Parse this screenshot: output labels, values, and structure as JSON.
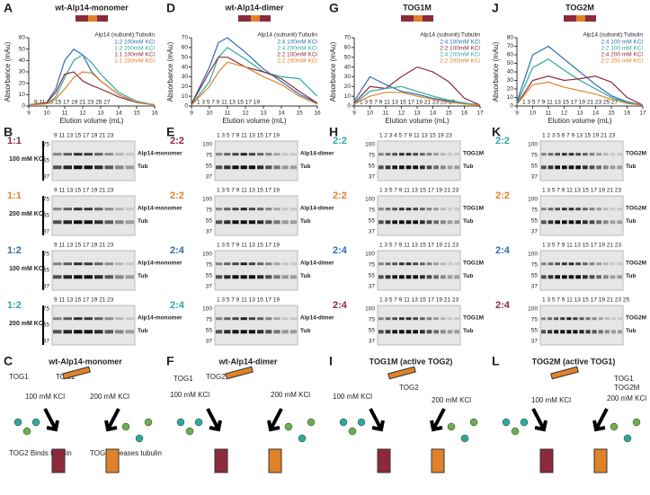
{
  "chart_data": [
    {
      "type": "line",
      "label": "A",
      "title": "wt-Alp14-monomer",
      "subtitle": "Alp14 (subunit):Tubulin",
      "x_label": "Elution volume (mL)",
      "y_label": "Absorbance (mAu)",
      "fractions": "9 11 13 15 17 19 21 23 25 27",
      "x": [
        9,
        10,
        10.5,
        11,
        11.5,
        12,
        12.5,
        13,
        14,
        15,
        16
      ],
      "series": [
        {
          "name": "1:2 100mM KCl",
          "color": "#2e6db4",
          "values": [
            1,
            3,
            15,
            40,
            50,
            45,
            30,
            22,
            10,
            3,
            1
          ]
        },
        {
          "name": "1:2 200mM KCl",
          "color": "#2fa8a0",
          "values": [
            1,
            2,
            8,
            25,
            40,
            45,
            38,
            28,
            12,
            4,
            1
          ]
        },
        {
          "name": "1:1 100mM KCl",
          "color": "#8c2a3c",
          "values": [
            1,
            3,
            12,
            28,
            30,
            22,
            18,
            15,
            8,
            3,
            1
          ]
        },
        {
          "name": "1:1 200mM KCl",
          "color": "#e0822a",
          "values": [
            1,
            2,
            6,
            15,
            25,
            30,
            29,
            22,
            10,
            3,
            1
          ]
        }
      ],
      "xlim": [
        9,
        16
      ],
      "xticks": [
        9,
        10,
        11,
        12,
        13,
        14,
        15,
        16
      ],
      "ylim": [
        0,
        60
      ],
      "yticks": [
        0,
        10,
        20,
        30,
        40,
        50,
        60
      ]
    },
    {
      "type": "line",
      "label": "D",
      "title": "wt-Alp14-dimer",
      "subtitle": "Alp14 (subunit):Tubulin",
      "x_label": "Elution volume (mL)",
      "y_label": "Absorbance (mAu)",
      "fractions": "1 3 5 7 9 11 13 15 17 19",
      "x": [
        9,
        10,
        10.5,
        11,
        12,
        13,
        14,
        15,
        16
      ],
      "series": [
        {
          "name": "2:4 100mM KCl",
          "color": "#2e6db4",
          "values": [
            2,
            40,
            65,
            70,
            55,
            38,
            25,
            12,
            3
          ]
        },
        {
          "name": "2:4 200mM KCl",
          "color": "#2fa8a0",
          "values": [
            1,
            25,
            50,
            60,
            48,
            35,
            30,
            28,
            10
          ]
        },
        {
          "name": "2:2 100mM KCl",
          "color": "#8c2a3c",
          "values": [
            2,
            35,
            50,
            50,
            40,
            35,
            28,
            15,
            3
          ]
        },
        {
          "name": "2:2 200mM KCl",
          "color": "#e0822a",
          "values": [
            1,
            20,
            35,
            45,
            40,
            30,
            22,
            10,
            2
          ]
        }
      ],
      "xlim": [
        9,
        16
      ],
      "xticks": [
        9,
        10,
        11,
        12,
        13,
        14,
        15,
        16
      ],
      "ylim": [
        0,
        70
      ],
      "yticks": [
        0,
        10,
        20,
        30,
        40,
        50,
        60,
        70
      ]
    },
    {
      "type": "line",
      "label": "G",
      "title": "TOG1M",
      "subtitle": "Alp14 (subunit):Tubulin",
      "x_label": "Elution volume (mL)",
      "y_label": "Absorbance (mAu)",
      "fractions": "1 3 5 7 9 11 13 15 17 19 21 23 25 27",
      "x": [
        9,
        10,
        11,
        12,
        13,
        14,
        15,
        16,
        17
      ],
      "series": [
        {
          "name": "2:4 100mM KCl",
          "color": "#2e6db4",
          "values": [
            5,
            30,
            22,
            15,
            12,
            8,
            5,
            3,
            1
          ]
        },
        {
          "name": "2:2 100mM KCl",
          "color": "#8c2a3c",
          "values": [
            3,
            20,
            18,
            30,
            40,
            35,
            25,
            8,
            1
          ]
        },
        {
          "name": "2:4 200mM KCl",
          "color": "#2fa8a0",
          "values": [
            2,
            15,
            18,
            20,
            15,
            10,
            6,
            3,
            1
          ]
        },
        {
          "name": "2:2 200mM KCl",
          "color": "#e0822a",
          "values": [
            2,
            10,
            14,
            14,
            10,
            7,
            4,
            2,
            1
          ]
        }
      ],
      "xlim": [
        9,
        17
      ],
      "xticks": [
        9,
        10,
        11,
        12,
        13,
        14,
        15,
        16,
        17
      ],
      "ylim": [
        0,
        70
      ],
      "yticks": [
        0,
        10,
        20,
        30,
        40,
        50,
        60,
        70
      ]
    },
    {
      "type": "line",
      "label": "J",
      "title": "TOG2M",
      "subtitle": "Alp14 (subunit):Tubulin",
      "x_label": "Elution volume (mL)",
      "y_label": "Absorbance (mAu)",
      "fractions": "1 3 5 7 9 11 13 15 17 19 21 23 25 27",
      "x": [
        9,
        10,
        11,
        12,
        13,
        14,
        15,
        16,
        17
      ],
      "series": [
        {
          "name": "2:4 100 mM KCl",
          "color": "#2e6db4",
          "values": [
            5,
            60,
            70,
            55,
            40,
            25,
            12,
            5,
            1
          ]
        },
        {
          "name": "2:2 100 mM KCl",
          "color": "#2fa8a0",
          "values": [
            3,
            45,
            55,
            42,
            30,
            20,
            10,
            4,
            1
          ]
        },
        {
          "name": "2:4 200 mM KCl",
          "color": "#8c2a3c",
          "values": [
            2,
            30,
            35,
            30,
            32,
            35,
            28,
            10,
            1
          ]
        },
        {
          "name": "2:2 200 mM KCl",
          "color": "#e0822a",
          "values": [
            2,
            25,
            28,
            22,
            18,
            14,
            8,
            3,
            1
          ]
        }
      ],
      "xlim": [
        9,
        17
      ],
      "xticks": [
        9,
        10,
        11,
        12,
        13,
        14,
        15,
        16,
        17
      ],
      "ylim": [
        0,
        80
      ],
      "yticks": [
        0,
        10,
        20,
        30,
        40,
        50,
        60,
        70,
        80
      ]
    }
  ],
  "gels": [
    {
      "label": "B",
      "blots": [
        {
          "ratio": "1:1",
          "color": "#8c2a3c",
          "condition": "100 mM KCl",
          "lanes": "9 11 13 15 17 19 21 23",
          "markers": [
            "75",
            "55",
            "37"
          ],
          "bands": [
            "Alp14-monomer",
            "Tub"
          ]
        },
        {
          "ratio": "1:1",
          "color": "#e0822a",
          "condition": "200 mM KCl",
          "lanes": "9 11 13 15 17 19 21 23",
          "markers": [
            "75",
            "55",
            "37"
          ],
          "bands": [
            "Alp14-monomer",
            "Tub"
          ]
        },
        {
          "ratio": "1:2",
          "color": "#2e6db4",
          "condition": "100 mM KCl",
          "lanes": "9 11 13 15 17 19 21 23",
          "markers": [
            "75",
            "55",
            "37"
          ],
          "bands": [
            "Alp14-monomer",
            "Tub"
          ]
        },
        {
          "ratio": "1:2",
          "color": "#2fa8a0",
          "condition": "200 mM KCl",
          "lanes": "9 11 13 15 17 19 21 23",
          "markers": [
            "75",
            "55",
            "37"
          ],
          "bands": [
            "Alp14-monomer",
            "Tub"
          ]
        }
      ]
    },
    {
      "label": "E",
      "blots": [
        {
          "ratio": "2:2",
          "color": "#8c2a3c",
          "lanes": "1 3 5 7 9 11 13 15 17 19",
          "markers": [
            "100",
            "75",
            "55",
            "37"
          ],
          "bands": [
            "Alp14-dimer",
            "Tub"
          ]
        },
        {
          "ratio": "2:2",
          "color": "#e0822a",
          "lanes": "1 3 5 7 9 11 13 15 17 19",
          "markers": [
            "100",
            "75",
            "55",
            "37"
          ],
          "bands": [
            "Alp14-dimer",
            "Tub"
          ]
        },
        {
          "ratio": "2:4",
          "color": "#2e6db4",
          "lanes": "1 3 5 7 9 11 13 15 17 19",
          "markers": [
            "100",
            "75",
            "55",
            "37"
          ],
          "bands": [
            "Alp14-dimer",
            "Tub"
          ]
        },
        {
          "ratio": "2:4",
          "color": "#2fa8a0",
          "lanes": "1 3 5 7 9 11 13 15 17 19",
          "markers": [
            "100",
            "75",
            "55",
            "37"
          ],
          "bands": [
            "Alp14-dimer",
            "Tub"
          ]
        }
      ]
    },
    {
      "label": "H",
      "blots": [
        {
          "ratio": "2:2",
          "color": "#2fa8a0",
          "lanes": "1 2 3 4 5 7 9 11 13 15 19 23",
          "markers": [
            "100",
            "75",
            "55",
            "37"
          ],
          "bands": [
            "TOG1M",
            "Tub"
          ]
        },
        {
          "ratio": "2:2",
          "color": "#e0822a",
          "lanes": "1 3 5 7 9 11 13 15 17 19 21 23",
          "markers": [
            "100",
            "75",
            "55",
            "37"
          ],
          "bands": [
            "TOG1M",
            "Tub"
          ]
        },
        {
          "ratio": "2:4",
          "color": "#2e6db4",
          "lanes": "1 3 5 7 9 11 13 15 17 19 21 23",
          "markers": [
            "100",
            "75",
            "55",
            "37"
          ],
          "bands": [
            "TOG1M",
            "Tub"
          ]
        },
        {
          "ratio": "2:4",
          "color": "#8c2a3c",
          "lanes": "1 3 5 7 9 11 13 15 17 19 21 23",
          "markers": [
            "100",
            "75",
            "55",
            "37"
          ],
          "bands": [
            "TOG1M",
            "Tub"
          ]
        }
      ]
    },
    {
      "label": "K",
      "blots": [
        {
          "ratio": "2:2",
          "color": "#2fa8a0",
          "lanes": "1 2 3 5 6 7 9 13 15 19 21 23",
          "markers": [
            "100",
            "75",
            "55",
            "37"
          ],
          "bands": [
            "TOG2M",
            "Tub"
          ]
        },
        {
          "ratio": "2:2",
          "color": "#e0822a",
          "lanes": "1 3 5 7 9 11 13 15 17 19 21 23",
          "markers": [
            "100",
            "75",
            "55",
            "37"
          ],
          "bands": [
            "TOG2M",
            "Tub"
          ]
        },
        {
          "ratio": "2:4",
          "color": "#2e6db4",
          "lanes": "1 3 5 7 9 11 13 15 17 19 21 23",
          "markers": [
            "100",
            "75",
            "55",
            "37"
          ],
          "bands": [
            "TOG2M",
            "Tub"
          ]
        },
        {
          "ratio": "2:4",
          "color": "#8c2a3c",
          "lanes": "1 3 5 7 9 11 13 15 17 19 21 23 25",
          "markers": [
            "100",
            "75",
            "55",
            "37"
          ],
          "bands": [
            "TOG2M",
            "Tub"
          ]
        }
      ]
    }
  ],
  "diagrams": [
    {
      "label": "C",
      "title": "wt-Alp14-monomer",
      "texts": [
        "TOG1",
        "TOG2",
        "100 mM KCl",
        "200 mM KCl",
        "TOG2 Binds tubulin",
        "TOG2 releases tubulin"
      ]
    },
    {
      "label": "F",
      "title": "wt-Alp14-dimer",
      "texts": [
        "TOG1",
        "TOG2",
        "100 mM KCl",
        "200 mM KCl"
      ]
    },
    {
      "label": "I",
      "title": "TOG1M (active TOG2)",
      "texts": [
        "TOG2",
        "100 mM KCl",
        "200 mM KCl"
      ]
    },
    {
      "label": "L",
      "title": "TOG2M (active TOG1)",
      "texts": [
        "TOG1",
        "TOG2M",
        "100 mM KCl",
        "200 mM KCl"
      ]
    }
  ]
}
